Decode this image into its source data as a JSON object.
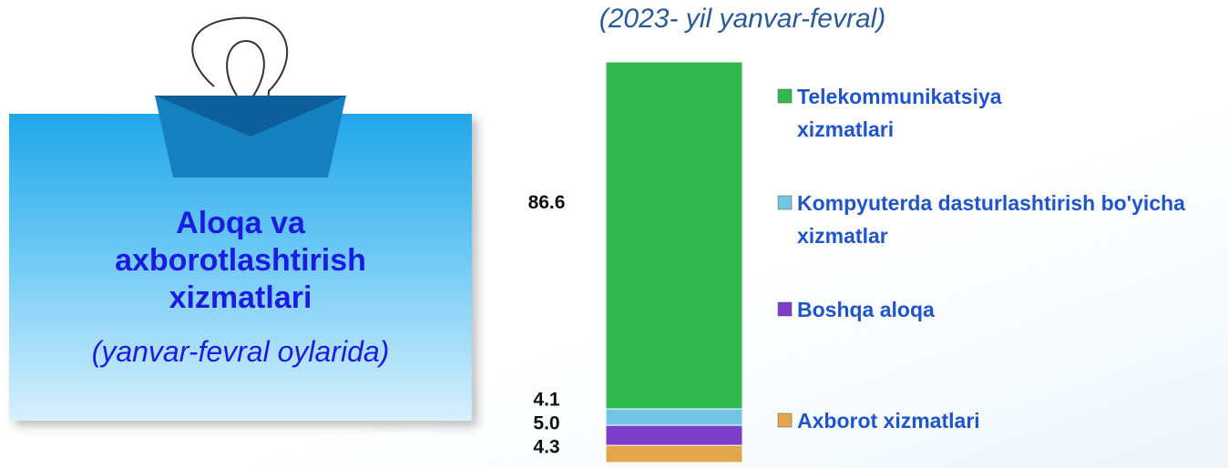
{
  "panel": {
    "title": "Aloqa va axborotlashtirish xizmatlari",
    "subtitle": "(yanvar-fevral oylarida)"
  },
  "chart_data": {
    "type": "bar",
    "stacked": true,
    "title": "(2023- yil yanvar-fevral)",
    "categories": [
      null
    ],
    "ylim": [
      0,
      100
    ],
    "series": [
      {
        "name": "Axborot xizmatlari",
        "color": "#e3a64a",
        "values": [
          4.3
        ],
        "value_labels": [
          "4.3"
        ]
      },
      {
        "name": "Boshqa aloqa",
        "color": "#7b3fc9",
        "values": [
          5.0
        ],
        "value_labels": [
          "5.0"
        ]
      },
      {
        "name": "Kompyuterda dasturlashtirish bo'yicha xizmatlar",
        "color": "#72c6e4",
        "values": [
          4.1
        ],
        "value_labels": [
          "4.1"
        ]
      },
      {
        "name": "Telekommunikatsiya xizmatlari",
        "color": "#2fb94f",
        "values": [
          86.6
        ],
        "value_labels": [
          "86.6"
        ]
      }
    ]
  }
}
